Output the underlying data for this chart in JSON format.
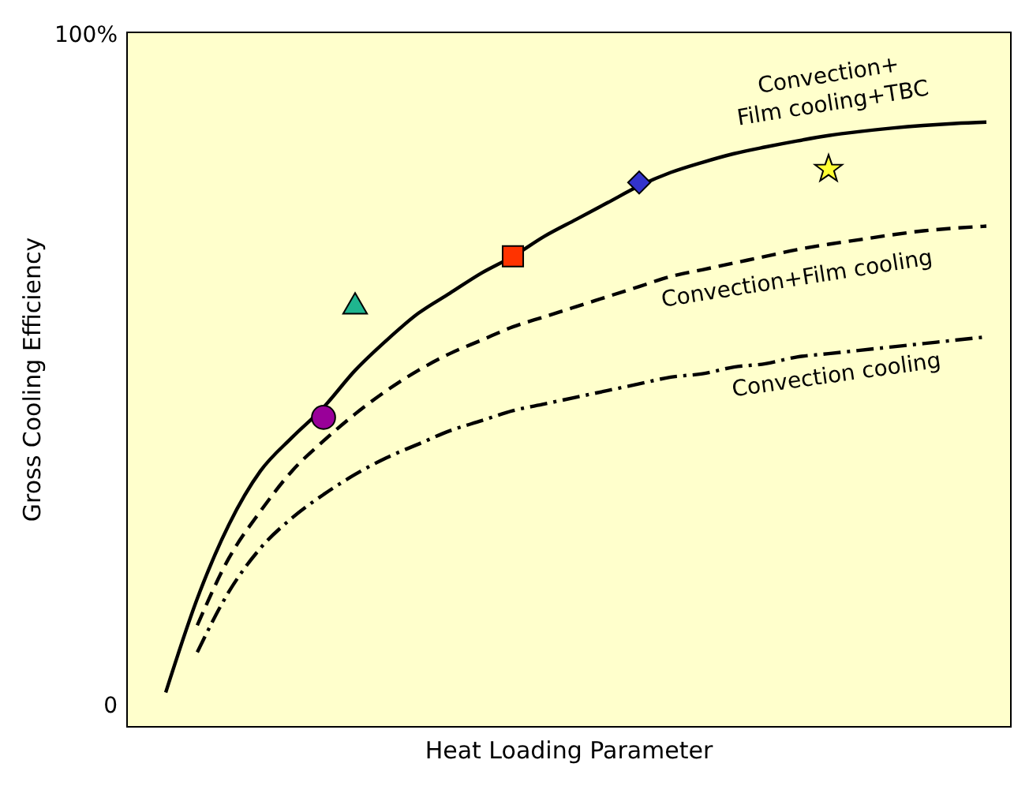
{
  "chart_data": {
    "type": "line",
    "xlabel": "Heat Loading Parameter",
    "ylabel": "Gross Cooling Efficiency",
    "categories": [
      null,
      null,
      null,
      null,
      null,
      null,
      null,
      null,
      null,
      null,
      null,
      null,
      null,
      null,
      null,
      null,
      null,
      null,
      null,
      null,
      null,
      null,
      null,
      null,
      null,
      null,
      null
    ],
    "ylim": [
      -3,
      100.5
    ],
    "yticks": [
      {
        "value": 0,
        "label": "0"
      },
      {
        "value": 100,
        "label": "100%"
      }
    ],
    "tick_labels": "y",
    "grid": false,
    "series": [
      {
        "color": "#000000",
        "line_style": "solid",
        "marker": "none",
        "values": [
          2,
          16,
          27,
          35,
          40,
          44.5,
          50,
          54.5,
          58.5,
          61.5,
          64.5,
          67,
          70,
          72.5,
          75,
          77.5,
          79.5,
          81,
          82.3,
          83.3,
          84.2,
          85,
          85.6,
          86.1,
          86.5,
          86.8,
          87
        ]
      },
      {
        "color": "#000000",
        "line_style": "dashed",
        "marker": "none",
        "values": [
          null,
          12,
          22,
          29,
          35,
          39.5,
          43.5,
          47,
          50,
          52.5,
          54.5,
          56.5,
          58,
          59.5,
          61,
          62.5,
          64,
          65,
          66,
          67,
          68,
          68.8,
          69.5,
          70.2,
          70.8,
          71.2,
          71.5
        ]
      },
      {
        "color": "#000000",
        "line_style": "dashdot",
        "marker": "none",
        "values": [
          null,
          8,
          17,
          23.5,
          28,
          31.5,
          34.5,
          37,
          39,
          41,
          42.5,
          44,
          45,
          46,
          47,
          48,
          49,
          49.5,
          50.5,
          51,
          52,
          52.5,
          53,
          53.5,
          54,
          54.5,
          55
        ]
      },
      {
        "type": "scatter",
        "color": "#990099",
        "marker": "circle",
        "values": [
          null,
          null,
          null,
          null,
          null,
          43,
          null,
          null,
          null,
          null,
          null,
          null,
          null,
          null,
          null,
          null,
          null,
          null,
          null,
          null,
          null,
          null,
          null,
          null,
          null,
          null,
          null
        ]
      },
      {
        "type": "scatter",
        "color": "#1fb58f",
        "marker": "triangle",
        "values": [
          null,
          null,
          null,
          null,
          null,
          null,
          60,
          null,
          null,
          null,
          null,
          null,
          null,
          null,
          null,
          null,
          null,
          null,
          null,
          null,
          null,
          null,
          null,
          null,
          null,
          null,
          null
        ]
      },
      {
        "type": "scatter",
        "color": "#ff3300",
        "marker": "square",
        "values": [
          null,
          null,
          null,
          null,
          null,
          null,
          null,
          null,
          null,
          null,
          null,
          67,
          null,
          null,
          null,
          null,
          null,
          null,
          null,
          null,
          null,
          null,
          null,
          null,
          null,
          null,
          null
        ]
      },
      {
        "type": "scatter",
        "color": "#3333cc",
        "marker": "diamond",
        "values": [
          null,
          null,
          null,
          null,
          null,
          null,
          null,
          null,
          null,
          null,
          null,
          null,
          null,
          null,
          null,
          78,
          null,
          null,
          null,
          null,
          null,
          null,
          null,
          null,
          null,
          null,
          null
        ]
      },
      {
        "type": "scatter",
        "color": "#ffff33",
        "marker": "star",
        "values": [
          null,
          null,
          null,
          null,
          null,
          null,
          null,
          null,
          null,
          null,
          null,
          null,
          null,
          null,
          null,
          null,
          null,
          null,
          null,
          null,
          null,
          80,
          null,
          null,
          null,
          null,
          null
        ]
      }
    ],
    "annotations": [
      "Convection+\nFilm cooling+TBC",
      "Convection+Film cooling",
      "Convection cooling"
    ]
  }
}
